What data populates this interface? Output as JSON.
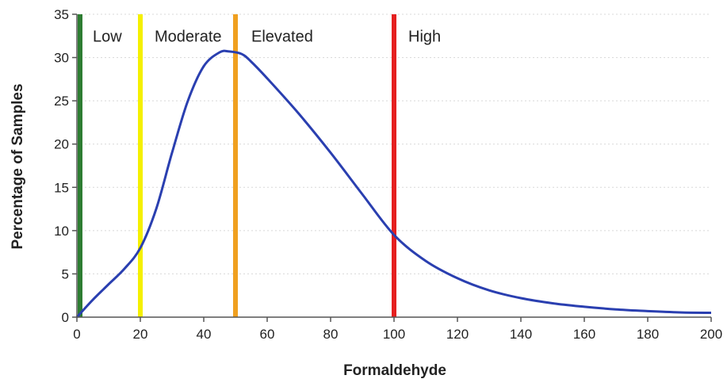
{
  "chart_data": {
    "type": "line",
    "title": "",
    "xlabel": "Formaldehyde",
    "ylabel": "Percentage of Samples",
    "xlim": [
      0,
      200
    ],
    "ylim": [
      0,
      35
    ],
    "x_ticks": [
      0,
      20,
      40,
      60,
      80,
      100,
      120,
      140,
      160,
      180,
      200
    ],
    "y_ticks": [
      0,
      5,
      10,
      15,
      20,
      25,
      30,
      35
    ],
    "grid": true,
    "series": [
      {
        "color": "#2a3fb0",
        "x": [
          0,
          5,
          10,
          15,
          20,
          25,
          30,
          35,
          40,
          45,
          48,
          52,
          55,
          60,
          70,
          80,
          90,
          100,
          110,
          120,
          130,
          140,
          150,
          160,
          170,
          180,
          190,
          200
        ],
        "y": [
          0,
          2,
          3.8,
          5.6,
          8,
          12.5,
          19,
          25,
          29,
          30.6,
          30.7,
          30.4,
          29.5,
          27.6,
          23.5,
          19,
          14.2,
          9.5,
          6.5,
          4.5,
          3.1,
          2.2,
          1.6,
          1.2,
          0.9,
          0.7,
          0.55,
          0.5
        ]
      }
    ],
    "thresholds": [
      {
        "x": 1,
        "color": "#2e7d32"
      },
      {
        "x": 20,
        "color": "#f5f000"
      },
      {
        "x": 50,
        "color": "#f0a020"
      },
      {
        "x": 100,
        "color": "#e52020"
      }
    ],
    "annotations": [
      {
        "text": "Low",
        "x": 5,
        "y": 32.5
      },
      {
        "text": "Moderate",
        "x": 24.5,
        "y": 32.5
      },
      {
        "text": "Elevated",
        "x": 55,
        "y": 32.5
      },
      {
        "text": "High",
        "x": 104.5,
        "y": 32.5
      }
    ]
  }
}
